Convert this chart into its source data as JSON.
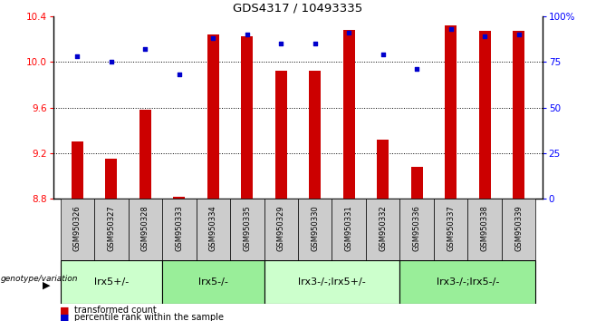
{
  "title": "GDS4317 / 10493335",
  "samples": [
    "GSM950326",
    "GSM950327",
    "GSM950328",
    "GSM950333",
    "GSM950334",
    "GSM950335",
    "GSM950329",
    "GSM950330",
    "GSM950331",
    "GSM950332",
    "GSM950336",
    "GSM950337",
    "GSM950338",
    "GSM950339"
  ],
  "red_values": [
    9.3,
    9.15,
    9.58,
    8.82,
    10.24,
    10.22,
    9.92,
    9.92,
    10.28,
    9.32,
    9.08,
    10.32,
    10.27,
    10.27
  ],
  "blue_values": [
    78,
    75,
    82,
    68,
    88,
    90,
    85,
    85,
    91,
    79,
    71,
    93,
    89,
    90
  ],
  "ylim_left": [
    8.8,
    10.4
  ],
  "ylim_right": [
    0,
    100
  ],
  "yticks_left": [
    8.8,
    9.2,
    9.6,
    10.0,
    10.4
  ],
  "yticks_right": [
    0,
    25,
    50,
    75,
    100
  ],
  "ytick_labels_right": [
    "0",
    "25",
    "50",
    "75",
    "100%"
  ],
  "groups": [
    {
      "label": "lrx5+/-",
      "start": 0,
      "end": 3,
      "color": "#ccffcc"
    },
    {
      "label": "lrx5-/-",
      "start": 3,
      "end": 6,
      "color": "#99ee99"
    },
    {
      "label": "lrx3-/-;lrx5+/-",
      "start": 6,
      "end": 10,
      "color": "#ccffcc"
    },
    {
      "label": "lrx3-/-;lrx5-/-",
      "start": 10,
      "end": 14,
      "color": "#99ee99"
    }
  ],
  "bar_color": "#cc0000",
  "dot_color": "#0000cc",
  "bar_bottom": 8.8,
  "legend_red": "transformed count",
  "legend_blue": "percentile rank within the sample",
  "genotype_label": "genotype/variation",
  "tick_label_fontsize": 6,
  "group_label_fontsize": 8
}
